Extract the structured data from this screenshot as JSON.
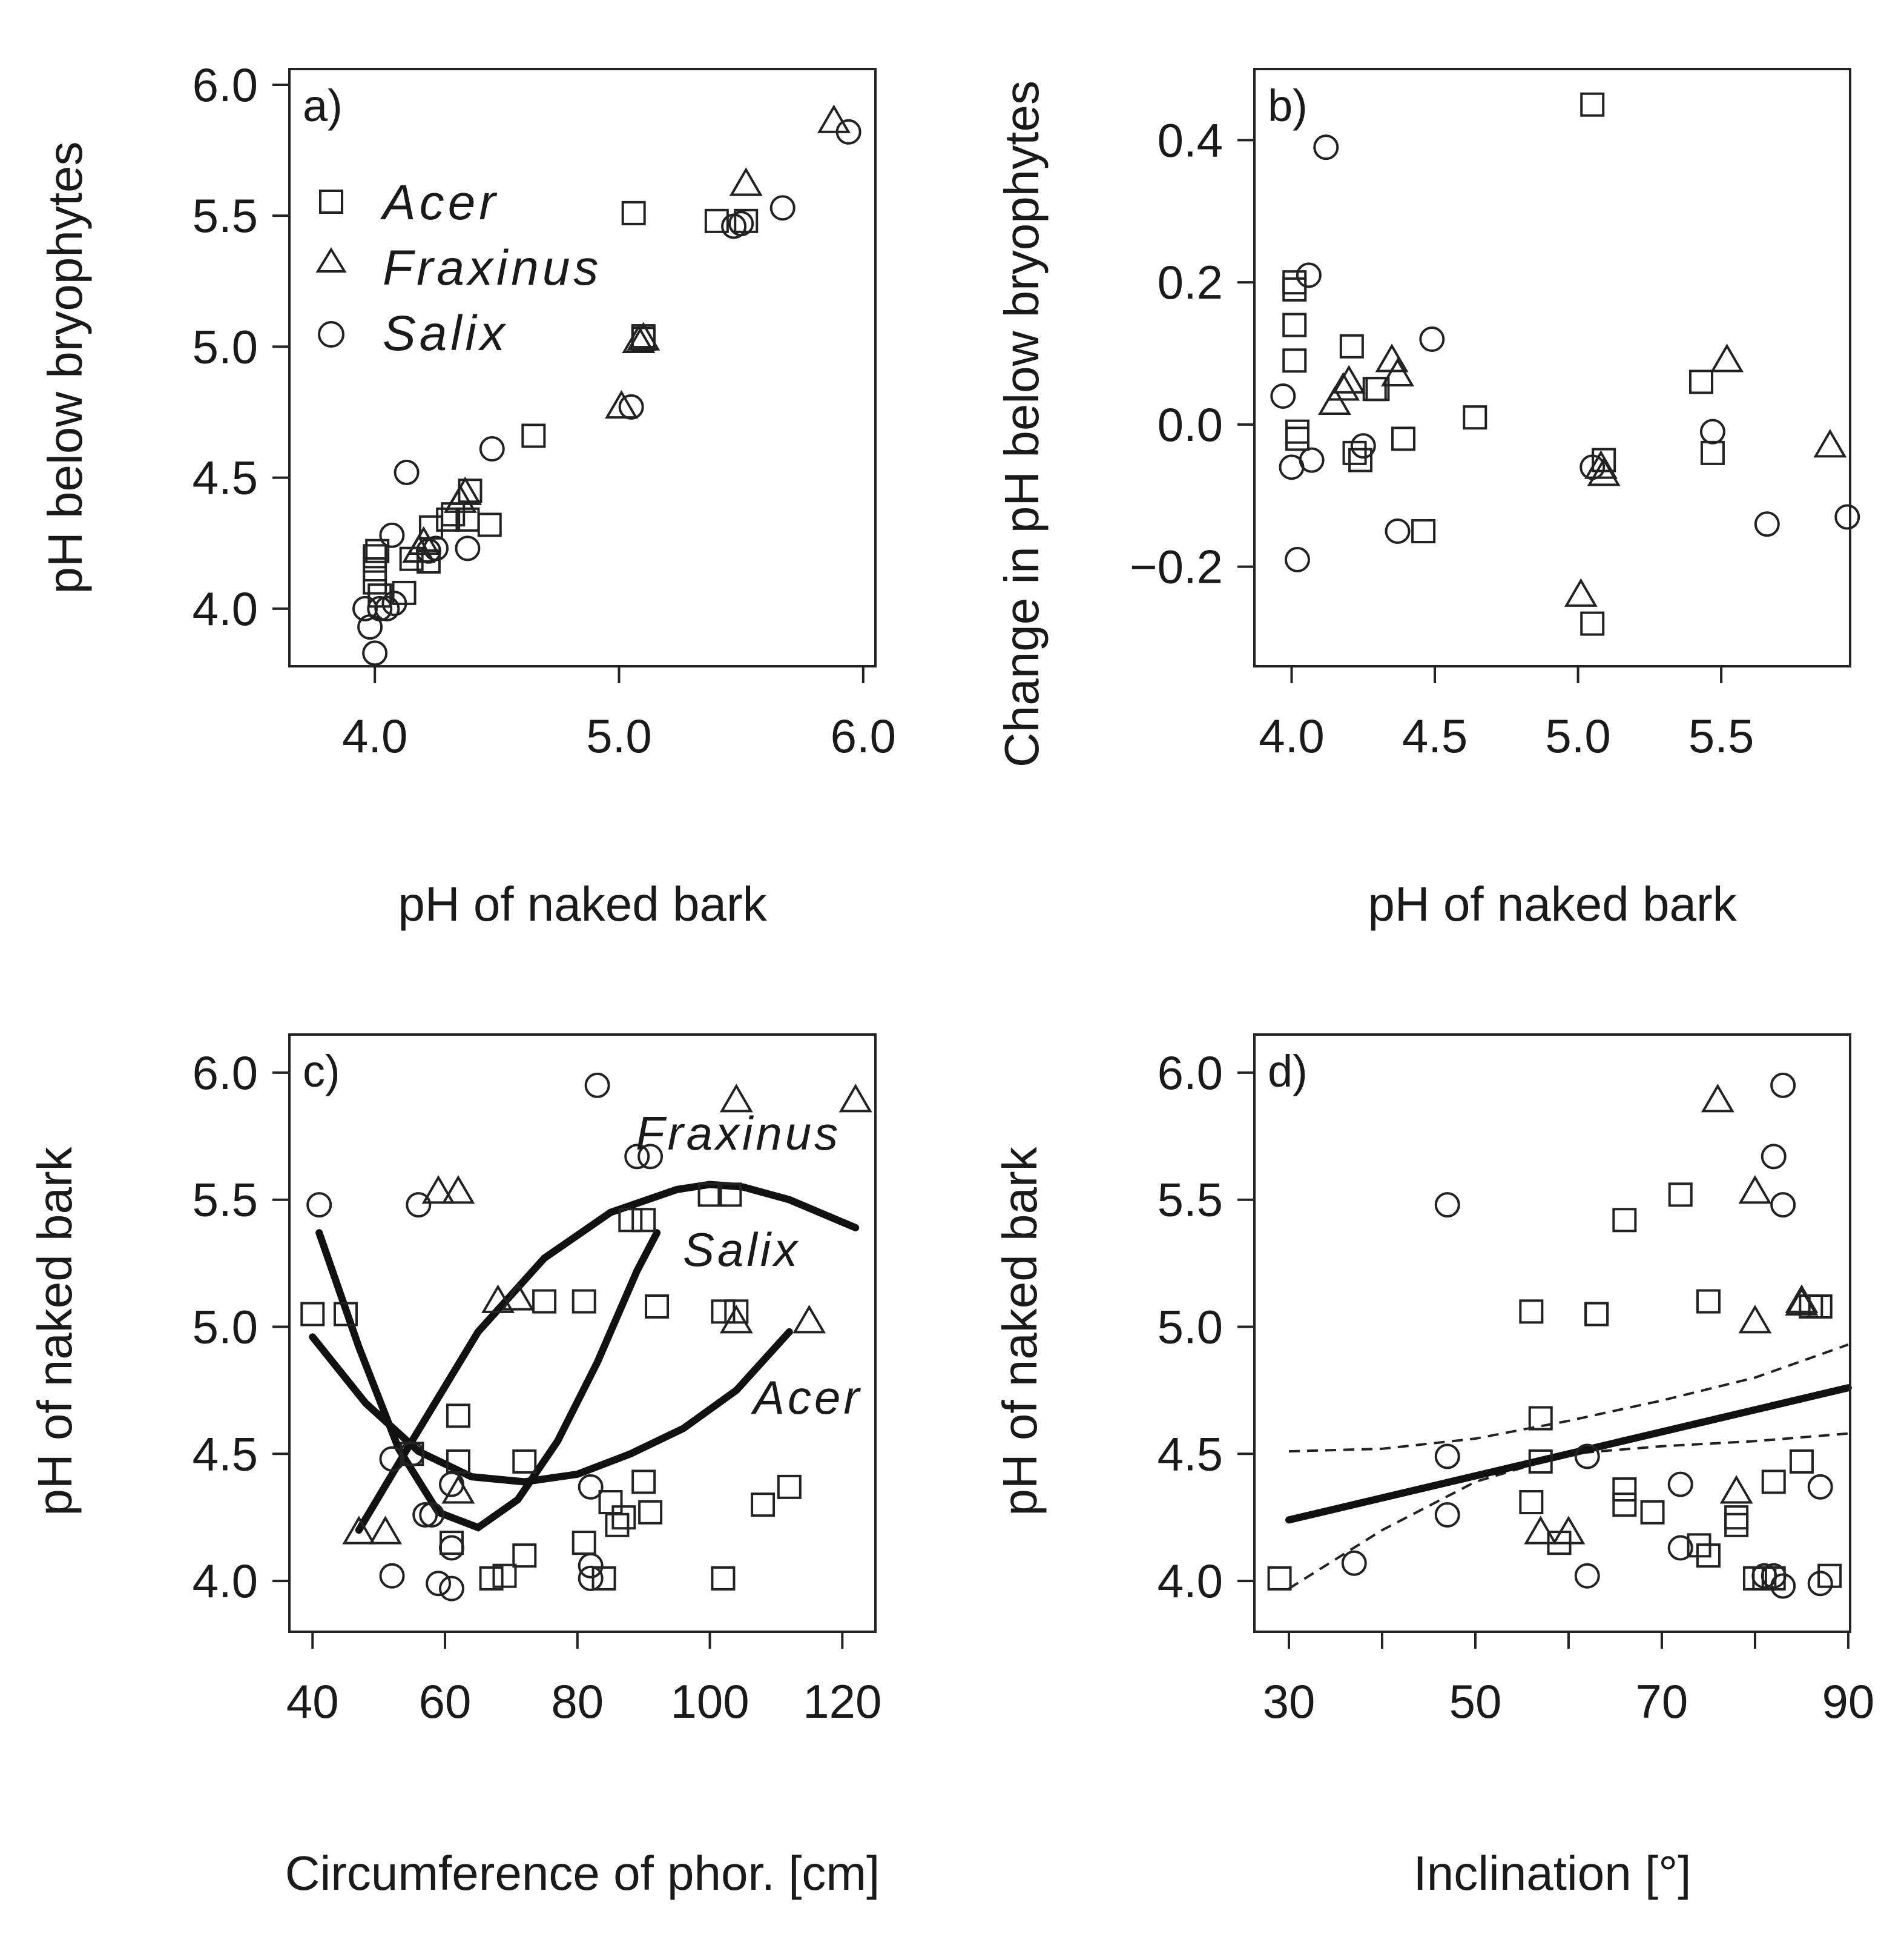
{
  "chart_data": [
    {
      "panel": "a)",
      "type": "scatter",
      "xlabel": "pH of naked bark",
      "ylabel": "pH below bryophytes",
      "xlim": [
        3.65,
        6.05
      ],
      "ylim": [
        3.78,
        6.06
      ],
      "xticks": [
        4.0,
        5.0,
        6.0
      ],
      "xtick_labels": [
        "4.0",
        "5.0",
        "6.0"
      ],
      "yticks": [
        4.0,
        4.5,
        5.0,
        5.5,
        6.0
      ],
      "ytick_labels": [
        "4.0",
        "4.5",
        "5.0",
        "5.5",
        "6.0"
      ],
      "legend": {
        "position": "top-left",
        "entries": [
          {
            "label": "Acer",
            "marker": "square"
          },
          {
            "label": "Fraxinus",
            "marker": "triangle"
          },
          {
            "label": "Salix",
            "marker": "circle"
          }
        ]
      },
      "series": [
        {
          "name": "Acer",
          "marker": "square",
          "x": [
            4.0,
            4.0,
            4.0,
            4.01,
            4.02,
            4.12,
            4.15,
            4.22,
            4.23,
            4.3,
            4.32,
            4.38,
            4.39,
            4.47,
            4.65,
            5.06,
            5.1,
            5.1,
            5.4,
            5.52
          ],
          "y": [
            4.2,
            4.15,
            4.1,
            4.22,
            4.05,
            4.06,
            4.19,
            4.18,
            4.31,
            4.34,
            4.36,
            4.34,
            4.45,
            4.32,
            4.66,
            5.51,
            5.04,
            5.03,
            5.48,
            5.48
          ]
        },
        {
          "name": "Fraxinus",
          "marker": "triangle",
          "x": [
            4.18,
            4.2,
            4.35,
            4.37,
            5.01,
            5.08,
            5.1,
            5.52,
            5.88
          ],
          "y": [
            4.22,
            4.25,
            4.41,
            4.44,
            4.77,
            5.02,
            5.03,
            5.62,
            5.86
          ]
        },
        {
          "name": "Salix",
          "marker": "circle",
          "x": [
            3.96,
            3.98,
            4.0,
            4.02,
            4.05,
            4.07,
            4.08,
            4.13,
            4.22,
            4.25,
            4.38,
            4.48,
            5.05,
            5.47,
            5.5,
            5.67,
            5.94
          ],
          "y": [
            4.0,
            3.93,
            3.83,
            4.0,
            4.0,
            4.28,
            4.02,
            4.52,
            4.22,
            4.23,
            4.23,
            4.61,
            4.77,
            5.46,
            5.47,
            5.53,
            5.82
          ]
        }
      ]
    },
    {
      "panel": "b)",
      "type": "scatter",
      "xlabel": "pH of naked bark",
      "ylabel": "Change in pH below bryophytes",
      "xlim": [
        3.87,
        5.95
      ],
      "ylim": [
        -0.34,
        0.5
      ],
      "xticks": [
        4.0,
        4.5,
        5.0,
        5.5
      ],
      "xtick_labels": [
        "4.0",
        "4.5",
        "5.0",
        "5.5"
      ],
      "yticks": [
        -0.2,
        0.0,
        0.2,
        0.4
      ],
      "ytick_labels": [
        "−0.2",
        "0.0",
        "0.2",
        "0.4"
      ],
      "series": [
        {
          "name": "Acer",
          "marker": "square",
          "x": [
            4.01,
            4.01,
            4.01,
            4.01,
            4.02,
            4.02,
            4.21,
            4.22,
            4.24,
            4.29,
            4.3,
            4.39,
            4.46,
            4.64,
            5.05,
            5.05,
            5.09,
            5.43,
            5.47
          ],
          "y": [
            0.19,
            0.2,
            0.14,
            0.09,
            -0.01,
            -0.02,
            0.11,
            -0.04,
            -0.05,
            0.05,
            0.05,
            -0.02,
            -0.15,
            0.01,
            0.45,
            -0.28,
            -0.05,
            0.06,
            -0.04
          ]
        },
        {
          "name": "Fraxinus",
          "marker": "triangle",
          "x": [
            4.15,
            4.18,
            4.2,
            4.35,
            4.37,
            5.01,
            5.08,
            5.09,
            5.52,
            5.88
          ],
          "y": [
            0.03,
            0.05,
            0.06,
            0.09,
            0.07,
            -0.24,
            -0.06,
            -0.07,
            0.09,
            -0.03
          ]
        },
        {
          "name": "Salix",
          "marker": "circle",
          "x": [
            3.97,
            4.0,
            4.02,
            4.06,
            4.07,
            4.12,
            4.25,
            4.37,
            4.49,
            5.05,
            5.47,
            5.66,
            5.94
          ],
          "y": [
            0.04,
            -0.06,
            -0.19,
            0.21,
            -0.05,
            0.39,
            -0.03,
            -0.15,
            0.12,
            -0.06,
            -0.01,
            -0.14,
            -0.13
          ]
        }
      ]
    },
    {
      "panel": "c)",
      "type": "scatter",
      "xlabel": "Circumference of phor. [cm]",
      "ylabel": "pH of naked bark",
      "xlim": [
        36.5,
        125
      ],
      "ylim": [
        3.8,
        6.15
      ],
      "xticks": [
        40,
        60,
        80,
        100,
        120
      ],
      "xtick_labels": [
        "40",
        "60",
        "80",
        "100",
        "120"
      ],
      "yticks": [
        4.0,
        4.5,
        5.0,
        5.5,
        6.0
      ],
      "ytick_labels": [
        "4.0",
        "4.5",
        "5.0",
        "5.5",
        "6.0"
      ],
      "series": [
        {
          "name": "Acer",
          "marker": "square",
          "x": [
            40,
            45,
            55,
            61,
            62,
            62,
            67,
            69,
            72,
            72,
            75,
            81,
            81,
            84,
            85,
            86,
            87,
            88,
            90,
            90,
            91,
            92,
            100,
            102,
            102,
            103,
            104,
            108,
            112
          ],
          "y": [
            5.05,
            5.05,
            4.5,
            4.15,
            4.47,
            4.65,
            4.01,
            4.02,
            4.47,
            4.1,
            5.1,
            4.15,
            5.1,
            4.01,
            4.31,
            4.22,
            4.25,
            5.42,
            4.39,
            5.42,
            4.27,
            5.08,
            5.52,
            4.01,
            5.06,
            5.52,
            5.06,
            4.3,
            4.37
          ]
        },
        {
          "name": "Fraxinus",
          "marker": "triangle",
          "x": [
            47,
            51,
            59,
            62,
            62,
            68,
            71,
            104,
            104,
            115,
            122
          ],
          "y": [
            4.19,
            4.19,
            5.53,
            5.53,
            4.35,
            5.1,
            5.11,
            5.89,
            5.02,
            5.02,
            5.89
          ]
        },
        {
          "name": "Salix",
          "marker": "circle",
          "x": [
            41,
            52,
            52,
            55,
            56,
            57,
            58,
            59,
            61,
            61,
            61,
            82,
            82,
            82,
            83,
            89,
            91
          ],
          "y": [
            5.48,
            4.02,
            4.48,
            4.5,
            5.48,
            4.26,
            4.26,
            3.99,
            4.13,
            4.38,
            3.97,
            4.37,
            4.01,
            4.06,
            5.95,
            5.67,
            5.67
          ]
        }
      ],
      "curve_labels": [
        {
          "label": "Fraxinus",
          "position": "upper-right"
        },
        {
          "label": "Salix",
          "position": "right"
        },
        {
          "label": "Acer",
          "position": "lower-right"
        }
      ],
      "fit_curves": [
        {
          "name": "Fraxinus",
          "x": [
            47,
            55,
            65,
            75,
            85,
            95,
            100,
            105,
            112,
            122
          ],
          "y": [
            4.2,
            4.55,
            4.98,
            5.27,
            5.45,
            5.54,
            5.56,
            5.55,
            5.5,
            5.39
          ]
        },
        {
          "name": "Salix",
          "x": [
            41,
            47,
            53,
            59,
            65,
            71,
            77,
            83,
            89,
            92
          ],
          "y": [
            5.37,
            4.92,
            4.52,
            4.27,
            4.21,
            4.32,
            4.55,
            4.86,
            5.22,
            5.37
          ]
        },
        {
          "name": "Acer",
          "x": [
            40,
            48,
            56,
            64,
            72,
            80,
            88,
            96,
            104,
            112
          ],
          "y": [
            4.96,
            4.7,
            4.51,
            4.41,
            4.39,
            4.42,
            4.5,
            4.6,
            4.75,
            4.98
          ]
        }
      ]
    },
    {
      "panel": "d)",
      "type": "scatter",
      "xlabel": "Inclination [°]",
      "ylabel": "pH of naked bark",
      "xlim": [
        26.3,
        90.2
      ],
      "ylim": [
        3.8,
        6.15
      ],
      "xticks": [
        30,
        40,
        50,
        60,
        70,
        80,
        90
      ],
      "xtick_labels": [
        "30",
        "",
        "50",
        "",
        "70",
        "",
        "90"
      ],
      "yticks": [
        4.0,
        4.5,
        5.0,
        5.5,
        6.0
      ],
      "ytick_labels": [
        "4.0",
        "4.5",
        "5.0",
        "5.5",
        "6.0"
      ],
      "series": [
        {
          "name": "Acer",
          "marker": "square",
          "x": [
            29,
            56,
            56,
            57,
            57,
            59,
            63,
            63,
            66,
            66,
            66,
            69,
            72,
            74,
            75,
            75,
            78,
            78,
            80,
            81,
            82,
            82,
            85,
            86,
            87,
            88
          ],
          "y": [
            4.01,
            5.06,
            4.31,
            4.64,
            4.47,
            4.15,
            5.05,
            5.05,
            5.42,
            4.36,
            4.3,
            4.27,
            5.52,
            4.14,
            4.1,
            5.1,
            4.22,
            4.25,
            4.01,
            4.01,
            4.39,
            4.01,
            4.47,
            5.08,
            5.08,
            4.02
          ]
        },
        {
          "name": "Fraxinus",
          "marker": "triangle",
          "x": [
            57,
            60,
            76,
            78,
            80,
            80,
            85,
            85
          ],
          "y": [
            4.19,
            4.19,
            5.89,
            4.35,
            5.53,
            5.02,
            5.1,
            5.09
          ]
        },
        {
          "name": "Salix",
          "marker": "circle",
          "x": [
            37,
            47,
            47,
            47,
            62,
            62,
            72,
            72,
            81,
            82,
            82,
            83,
            83,
            83,
            87,
            87
          ],
          "y": [
            4.07,
            5.48,
            4.49,
            4.26,
            4.49,
            4.02,
            4.38,
            4.13,
            4.02,
            5.67,
            4.02,
            5.95,
            5.48,
            3.98,
            4.37,
            3.99
          ]
        }
      ],
      "regression": {
        "x": [
          30,
          90
        ],
        "y": [
          4.24,
          4.76
        ]
      },
      "ci_upper": {
        "x": [
          30,
          40,
          50,
          60,
          70,
          80,
          90
        ],
        "y": [
          4.51,
          4.52,
          4.56,
          4.63,
          4.71,
          4.8,
          4.93
        ]
      },
      "ci_lower": {
        "x": [
          30,
          40,
          50,
          60,
          70,
          80,
          90
        ],
        "y": [
          3.97,
          4.2,
          4.39,
          4.5,
          4.53,
          4.55,
          4.58
        ]
      }
    }
  ]
}
